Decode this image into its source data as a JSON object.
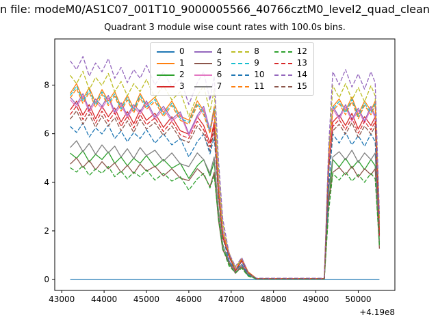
{
  "figure": {
    "suptitle": "n file: modeM0/AS1C07_001T10_9000005566_40766cztM0_level2_quad_clean",
    "title": "Quadrant 3 module wise count rates with 100.0s bins."
  },
  "chart_data": {
    "type": "line",
    "title": "Quadrant 3 module wise count rates with 100.0s bins.",
    "xlabel": "",
    "ylabel": "",
    "x_offset_label": "+4.19e8",
    "xlim": [
      42835,
      50865
    ],
    "ylim": [
      -0.45,
      9.9
    ],
    "x_ticks": [
      43000,
      44000,
      45000,
      46000,
      47000,
      48000,
      49000,
      50000
    ],
    "y_ticks": [
      0,
      2,
      4,
      6,
      8
    ],
    "grid": false,
    "legend_position": "upper center",
    "legend_columns": 4,
    "x": [
      43200,
      43350,
      43500,
      43650,
      43800,
      43950,
      44100,
      44250,
      44400,
      44550,
      44700,
      44850,
      45000,
      45200,
      45400,
      45600,
      45800,
      46000,
      46200,
      46350,
      46500,
      46600,
      46700,
      46800,
      46950,
      47100,
      47250,
      47400,
      47600,
      48000,
      48400,
      48800,
      49200,
      49300,
      49400,
      49550,
      49700,
      49850,
      50000,
      50150,
      50300,
      50400,
      50500
    ],
    "series": [
      {
        "name": "0",
        "color": "#1f77b4",
        "dash": "solid",
        "values": [
          0,
          0,
          0,
          0,
          0,
          0,
          0,
          0,
          0,
          0,
          0,
          0,
          0,
          0,
          0,
          0,
          0,
          0,
          0,
          0,
          0,
          0,
          0,
          0,
          0,
          0,
          0,
          0,
          0,
          0,
          0,
          0,
          0,
          0,
          0,
          0,
          0,
          0,
          0,
          0,
          0,
          0,
          0
        ]
      },
      {
        "name": "1",
        "color": "#ff7f0e",
        "dash": "solid",
        "values": [
          7.66,
          8.06,
          7.43,
          7.9,
          7.27,
          7.82,
          7.35,
          7.74,
          7.11,
          7.58,
          7.03,
          7.66,
          7.19,
          7.51,
          6.87,
          7.35,
          6.72,
          6.56,
          7.35,
          6.95,
          6.16,
          7.11,
          3.95,
          1.98,
          1.11,
          0.4,
          0.87,
          0.32,
          0.04,
          0.04,
          0.04,
          0.04,
          0.04,
          5.14,
          7.11,
          7.43,
          6.95,
          7.51,
          6.79,
          7.35,
          6.95,
          7.35,
          2.05
        ]
      },
      {
        "name": "2",
        "color": "#2ca02c",
        "dash": "solid",
        "values": [
          5.2,
          4.99,
          5.3,
          4.84,
          5.15,
          4.94,
          5.25,
          4.78,
          5.04,
          4.68,
          4.99,
          4.78,
          5.1,
          4.63,
          4.94,
          4.58,
          4.78,
          4.16,
          4.68,
          4.94,
          4.26,
          4.84,
          2.86,
          1.46,
          0.62,
          0.31,
          0.52,
          0.16,
          0.03,
          0.03,
          0.03,
          0.03,
          0.03,
          3.12,
          4.94,
          4.63,
          4.99,
          4.58,
          4.89,
          4.52,
          4.94,
          4.68,
          1.56
        ]
      },
      {
        "name": "3",
        "color": "#d62728",
        "dash": "solid",
        "values": [
          6.98,
          7.34,
          6.77,
          7.2,
          6.62,
          7.13,
          6.7,
          7.06,
          6.48,
          6.91,
          6.41,
          6.98,
          6.55,
          6.84,
          6.26,
          6.7,
          6.12,
          5.98,
          6.7,
          6.34,
          5.62,
          6.48,
          3.6,
          1.8,
          1.01,
          0.36,
          0.79,
          0.29,
          0.04,
          0.04,
          0.04,
          0.04,
          0.04,
          4.68,
          6.48,
          6.77,
          6.34,
          6.84,
          6.19,
          6.7,
          6.34,
          6.7,
          1.87
        ]
      },
      {
        "name": "4",
        "color": "#9467bd",
        "dash": "solid",
        "values": [
          7.5,
          7.2,
          7.65,
          6.98,
          7.43,
          7.13,
          7.58,
          6.9,
          7.28,
          6.75,
          7.2,
          6.9,
          7.35,
          6.68,
          7.13,
          6.6,
          6.9,
          6.0,
          6.75,
          7.13,
          6.15,
          6.98,
          4.13,
          2.1,
          0.9,
          0.45,
          0.75,
          0.23,
          0.04,
          0.04,
          0.04,
          0.04,
          0.04,
          4.5,
          7.13,
          6.68,
          7.2,
          6.6,
          7.05,
          6.53,
          7.13,
          6.75,
          2.25
        ]
      },
      {
        "name": "5",
        "color": "#8c564b",
        "dash": "solid",
        "values": [
          4.75,
          5.0,
          4.61,
          4.9,
          4.51,
          4.85,
          4.56,
          4.8,
          4.41,
          4.7,
          4.36,
          4.75,
          4.46,
          4.66,
          4.26,
          4.56,
          4.17,
          4.07,
          4.56,
          4.31,
          3.82,
          4.41,
          2.45,
          1.23,
          0.69,
          0.25,
          0.54,
          0.2,
          0.02,
          0.02,
          0.02,
          0.02,
          0.02,
          3.19,
          4.41,
          4.61,
          4.31,
          4.66,
          4.21,
          4.56,
          4.31,
          4.56,
          1.27
        ]
      },
      {
        "name": "6",
        "color": "#e377c2",
        "dash": "solid",
        "values": [
          7.4,
          7.1,
          7.55,
          6.88,
          7.33,
          7.03,
          7.47,
          6.81,
          7.18,
          6.66,
          7.1,
          6.81,
          7.25,
          6.59,
          7.03,
          6.51,
          6.81,
          5.92,
          6.66,
          7.03,
          6.07,
          6.88,
          4.07,
          2.07,
          0.89,
          0.44,
          0.74,
          0.22,
          0.04,
          0.04,
          0.04,
          0.04,
          0.04,
          4.44,
          7.03,
          6.59,
          7.1,
          6.51,
          6.96,
          6.44,
          7.03,
          6.66,
          2.22
        ]
      },
      {
        "name": "7",
        "color": "#7f7f7f",
        "dash": "solid",
        "values": [
          5.43,
          5.71,
          5.26,
          5.6,
          5.15,
          5.54,
          5.21,
          5.49,
          5.04,
          5.38,
          4.98,
          5.43,
          5.1,
          5.32,
          4.87,
          5.21,
          4.76,
          4.65,
          5.21,
          4.93,
          4.37,
          5.04,
          2.8,
          1.4,
          0.78,
          0.28,
          0.62,
          0.22,
          0.03,
          0.03,
          0.03,
          0.03,
          0.03,
          3.64,
          5.04,
          5.26,
          4.93,
          5.32,
          4.82,
          5.21,
          4.93,
          5.21,
          1.46
        ]
      },
      {
        "name": "8",
        "color": "#bcbd22",
        "dash": "dashed",
        "values": [
          8.4,
          8.06,
          8.57,
          7.81,
          8.32,
          7.98,
          8.48,
          7.73,
          8.15,
          7.56,
          8.06,
          7.73,
          8.23,
          7.48,
          7.98,
          7.39,
          7.73,
          6.72,
          7.56,
          7.98,
          6.89,
          7.81,
          4.62,
          2.35,
          1.01,
          0.5,
          0.84,
          0.25,
          0.04,
          0.04,
          0.04,
          0.04,
          0.04,
          5.04,
          7.98,
          7.48,
          8.06,
          7.39,
          7.9,
          7.31,
          7.98,
          7.56,
          2.52
        ]
      },
      {
        "name": "9",
        "color": "#17becf",
        "dash": "dashed",
        "values": [
          7.57,
          7.96,
          7.33,
          7.8,
          7.18,
          7.72,
          7.25,
          7.64,
          7.02,
          7.49,
          6.94,
          7.57,
          7.1,
          7.41,
          6.79,
          7.25,
          6.63,
          6.47,
          7.25,
          6.86,
          6.08,
          7.02,
          3.9,
          1.95,
          1.09,
          0.39,
          0.86,
          0.31,
          0.04,
          0.04,
          0.04,
          0.04,
          0.04,
          5.07,
          7.02,
          7.33,
          6.86,
          7.41,
          6.71,
          7.25,
          6.86,
          7.25,
          2.03
        ]
      },
      {
        "name": "10",
        "color": "#1f77b4",
        "dash": "dashed",
        "values": [
          6.3,
          6.05,
          6.43,
          5.86,
          6.24,
          5.99,
          6.36,
          5.8,
          6.11,
          5.67,
          6.05,
          5.8,
          6.17,
          5.61,
          5.99,
          5.54,
          5.8,
          5.04,
          5.67,
          5.99,
          5.17,
          5.86,
          3.47,
          1.76,
          0.76,
          0.38,
          0.63,
          0.19,
          0.03,
          0.03,
          0.03,
          0.03,
          0.03,
          3.78,
          5.99,
          5.61,
          6.05,
          5.54,
          5.92,
          5.48,
          5.99,
          5.67,
          1.89
        ]
      },
      {
        "name": "11",
        "color": "#ff7f0e",
        "dash": "dashed",
        "values": [
          7.47,
          7.85,
          7.24,
          7.7,
          7.08,
          7.62,
          7.16,
          7.55,
          6.93,
          7.39,
          6.85,
          7.47,
          7.01,
          7.32,
          6.7,
          7.16,
          6.55,
          6.39,
          7.16,
          6.78,
          6.01,
          6.93,
          3.85,
          1.93,
          1.08,
          0.39,
          0.85,
          0.31,
          0.04,
          0.04,
          0.04,
          0.04,
          0.04,
          5.01,
          6.93,
          7.24,
          6.78,
          7.32,
          6.62,
          7.16,
          6.78,
          7.16,
          2.0
        ]
      },
      {
        "name": "12",
        "color": "#2ca02c",
        "dash": "dashed",
        "values": [
          4.6,
          4.42,
          4.69,
          4.28,
          4.55,
          4.37,
          4.65,
          4.23,
          4.46,
          4.14,
          4.42,
          4.23,
          4.51,
          4.09,
          4.37,
          4.05,
          4.23,
          3.68,
          4.14,
          4.37,
          3.77,
          4.28,
          2.53,
          1.29,
          0.55,
          0.28,
          0.46,
          0.14,
          0.02,
          0.02,
          0.02,
          0.02,
          0.02,
          2.76,
          4.37,
          4.09,
          4.42,
          4.05,
          4.32,
          4.0,
          4.37,
          4.14,
          1.38
        ]
      },
      {
        "name": "13",
        "color": "#d62728",
        "dash": "dashed",
        "values": [
          6.79,
          7.14,
          6.58,
          7.0,
          6.44,
          6.93,
          6.51,
          6.86,
          6.3,
          6.72,
          6.23,
          6.79,
          6.37,
          6.65,
          6.09,
          6.51,
          5.95,
          5.81,
          6.51,
          6.16,
          5.46,
          6.3,
          3.5,
          1.75,
          0.98,
          0.35,
          0.77,
          0.28,
          0.04,
          0.04,
          0.04,
          0.04,
          0.04,
          4.55,
          6.3,
          6.58,
          6.16,
          6.65,
          6.02,
          6.51,
          6.16,
          6.51,
          1.82
        ]
      },
      {
        "name": "14",
        "color": "#9467bd",
        "dash": "dashed",
        "values": [
          9.0,
          8.64,
          9.18,
          8.37,
          8.91,
          8.55,
          9.09,
          8.28,
          8.73,
          8.1,
          8.64,
          8.28,
          8.82,
          8.01,
          8.55,
          7.92,
          8.28,
          7.2,
          8.1,
          8.55,
          7.38,
          8.37,
          4.95,
          2.52,
          1.08,
          0.54,
          0.9,
          0.27,
          0.05,
          0.05,
          0.05,
          0.05,
          0.05,
          5.4,
          8.55,
          8.01,
          8.64,
          7.92,
          8.46,
          7.83,
          8.55,
          8.1,
          2.7
        ]
      },
      {
        "name": "15",
        "color": "#8c564b",
        "dash": "dashed",
        "values": [
          6.6,
          6.94,
          6.39,
          6.8,
          6.26,
          6.73,
          6.32,
          6.66,
          6.12,
          6.53,
          6.05,
          6.6,
          6.19,
          6.46,
          5.92,
          6.32,
          5.78,
          5.64,
          6.32,
          5.98,
          5.3,
          6.12,
          3.4,
          1.7,
          0.95,
          0.34,
          0.75,
          0.27,
          0.03,
          0.03,
          0.03,
          0.03,
          0.03,
          4.42,
          6.12,
          6.39,
          5.98,
          6.46,
          5.85,
          6.32,
          5.98,
          6.32,
          1.77
        ]
      }
    ]
  }
}
